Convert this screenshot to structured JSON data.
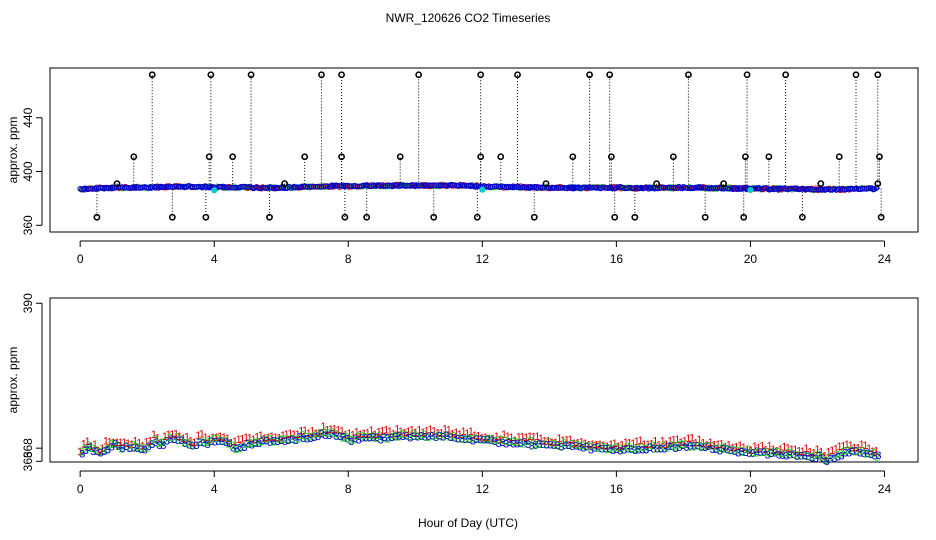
{
  "colors": {
    "frame": "#000000",
    "series1": "#dd0000",
    "series2": "#22cc22",
    "series3": "#0000cc",
    "line": "#0000cc",
    "highlight": "#00cccc",
    "dotted": "#000000"
  },
  "chart_data": [
    {
      "type": "scatter",
      "title": "NWR_120626  CO2 Timeseries",
      "xlabel": "",
      "ylabel": "approx. ppm",
      "xlim": [
        -0.9,
        25
      ],
      "ylim": [
        355,
        477
      ],
      "xticks": [
        0,
        4,
        8,
        12,
        16,
        20,
        24
      ],
      "xtick_labels": [
        "0",
        "4",
        "8",
        "12",
        "16",
        "20",
        "24"
      ],
      "yticks": [
        360,
        400,
        440
      ],
      "ytick_labels": [
        "360",
        "400",
        "440"
      ],
      "baseline": {
        "x": [
          0,
          0.5,
          1,
          1.5,
          2,
          2.5,
          3,
          3.5,
          4,
          4.5,
          5,
          5.5,
          6,
          6.5,
          7,
          7.5,
          8,
          8.5,
          9,
          9.5,
          10,
          10.5,
          11,
          11.5,
          12,
          12.5,
          13,
          13.5,
          14,
          14.5,
          15,
          15.5,
          16,
          16.5,
          17,
          17.5,
          18,
          18.5,
          19,
          19.5,
          20,
          20.5,
          21,
          21.5,
          22,
          22.5,
          23,
          23.5,
          23.8
        ],
        "y": [
          387,
          387.5,
          388,
          388,
          388.2,
          388.6,
          389,
          388.8,
          388.2,
          388.4,
          388.2,
          387.8,
          388,
          388.4,
          388.8,
          389.1,
          389.3,
          389.4,
          389.5,
          389.6,
          389.7,
          389.7,
          389.6,
          389.5,
          389,
          388.6,
          388.4,
          388.2,
          388,
          387.9,
          387.9,
          388,
          388,
          387.8,
          387.8,
          387.9,
          388,
          388,
          387.7,
          387.5,
          387.3,
          387.2,
          387,
          386.9,
          386.8,
          386.6,
          387,
          387.2,
          387.3
        ]
      },
      "spikes_high": [
        2.15,
        3.9,
        5.1,
        7.2,
        7.8,
        10.1,
        11.95,
        13.05,
        15.2,
        15.8,
        18.15,
        19.9,
        21.05,
        23.15,
        23.8
      ],
      "spikes_mid": [
        1.6,
        3.85,
        4.55,
        6.7,
        7.8,
        9.55,
        11.95,
        12.55,
        14.7,
        15.85,
        17.7,
        19.85,
        20.55,
        22.65,
        23.85
      ],
      "spikes_low": [
        0.5,
        2.75,
        3.75,
        5.65,
        7.9,
        8.55,
        10.55,
        11.85,
        13.55,
        15.95,
        16.55,
        18.65,
        19.8,
        21.55,
        23.9
      ],
      "spikes_small": [
        1.1,
        6.1,
        13.9,
        17.2,
        19.2,
        22.1,
        23.8
      ],
      "spike_values": {
        "high": 472,
        "mid": 411,
        "low": 366,
        "small": 391
      },
      "highlight_points": [
        {
          "x": 4.0,
          "y": 386
        },
        {
          "x": 12.0,
          "y": 386.5
        },
        {
          "x": 20.0,
          "y": 386.2
        }
      ]
    },
    {
      "type": "line",
      "title": "",
      "xlabel": "Hour of Day (UTC)",
      "ylabel": "approx. ppm",
      "xlim": [
        -0.9,
        25
      ],
      "ylim": [
        365.9,
        390.8
      ],
      "xticks": [
        0,
        4,
        8,
        12,
        16,
        20,
        24
      ],
      "xtick_labels": [
        "0",
        "4",
        "8",
        "12",
        "16",
        "20",
        "24"
      ],
      "yticks": [
        366,
        368,
        390
      ],
      "ytick_labels": [
        "366",
        "368",
        "390"
      ],
      "series": [
        {
          "name": "1",
          "marker": "1",
          "color": "series1"
        },
        {
          "name": "2",
          "marker": "2",
          "color": "series2"
        },
        {
          "name": "3",
          "marker": "3",
          "color": "series3"
        }
      ],
      "curve": {
        "x": [
          0,
          0.2,
          0.4,
          0.6,
          0.8,
          1,
          1.2,
          1.4,
          1.6,
          1.8,
          2,
          2.2,
          2.4,
          2.6,
          2.8,
          3,
          3.2,
          3.4,
          3.6,
          3.8,
          4,
          4.2,
          4.4,
          4.6,
          4.8,
          5,
          5.2,
          5.4,
          5.6,
          5.8,
          6,
          6.2,
          6.4,
          6.6,
          6.8,
          7,
          7.2,
          7.4,
          7.6,
          7.8,
          8,
          8.5,
          9,
          9.5,
          10,
          10.5,
          11,
          11.5,
          12,
          12.5,
          13,
          13.5,
          14,
          14.5,
          15,
          15.5,
          16,
          16.5,
          17,
          17.5,
          18,
          18.5,
          19,
          19.5,
          20,
          20.5,
          21,
          21.5,
          22,
          22.2,
          22.4,
          22.6,
          22.8,
          23,
          23.2,
          23.4,
          23.6,
          23.8
        ],
        "y": [
          367.1,
          368.3,
          367.6,
          367.1,
          368.1,
          368.6,
          368.0,
          368.3,
          368.1,
          367.8,
          368.2,
          369.0,
          368.4,
          369.3,
          369.6,
          369.1,
          368.6,
          368.3,
          369.1,
          368.8,
          369.3,
          369.1,
          368.7,
          367.9,
          368.3,
          368.7,
          368.8,
          369.1,
          369.2,
          369.0,
          369.3,
          369.6,
          369.5,
          369.8,
          369.6,
          369.9,
          370.1,
          370.3,
          370.0,
          369.7,
          369.4,
          369.6,
          369.6,
          369.8,
          369.9,
          369.8,
          369.8,
          369.5,
          369.2,
          369.0,
          368.9,
          368.7,
          368.6,
          368.4,
          368.2,
          368.0,
          367.9,
          367.9,
          368.1,
          368.2,
          368.4,
          368.4,
          367.9,
          367.6,
          367.4,
          367.3,
          367.1,
          366.9,
          366.8,
          366.3,
          366.5,
          367.1,
          367.3,
          367.6,
          367.6,
          367.3,
          367.0,
          366.8
        ]
      }
    }
  ]
}
